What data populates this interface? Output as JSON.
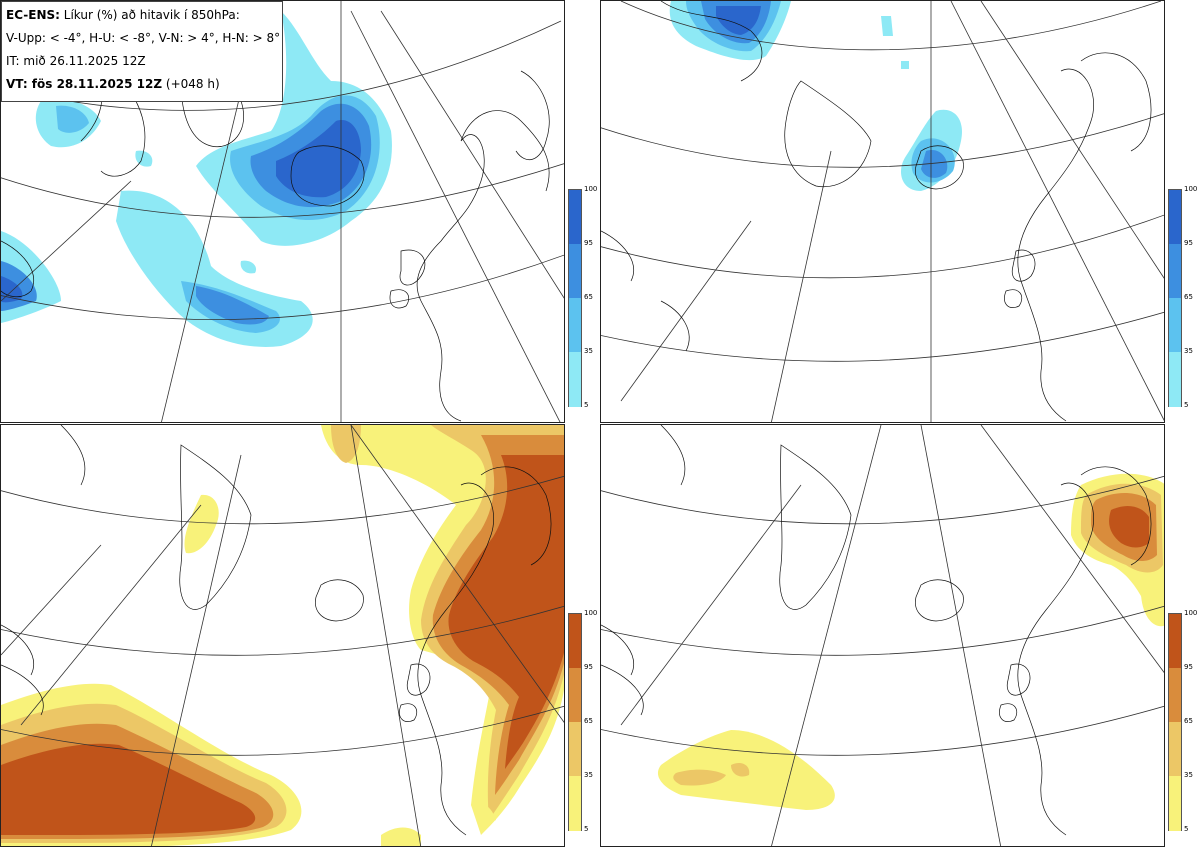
{
  "header": {
    "line1_bold": "EC-ENS:",
    "line1_rest": " Líkur (%) að hitavik í 850hPa:",
    "line2": "V-Upp: < -4°, H-U: < -8°, V-N: > 4°, H-N: > 8°",
    "line3": "IT: mið 26.11.2025 12Z",
    "line4_bold": "VT: fös 28.11.2025 12Z",
    "line4_rest": " (+048 h)"
  },
  "colorbar": {
    "ticks": [
      "100",
      "95",
      "65",
      "35",
      "5"
    ],
    "cold_colors": [
      "#2a66cc",
      "#3d8fe0",
      "#5cc2ef",
      "#8ee9f5"
    ],
    "warm_colors": [
      "#c0541a",
      "#d98c3c",
      "#ecc766",
      "#f8f27a"
    ]
  },
  "panels": [
    {
      "id": "top-left",
      "scheme": "cold"
    },
    {
      "id": "top-right",
      "scheme": "cold"
    },
    {
      "id": "bottom-left",
      "scheme": "warm"
    },
    {
      "id": "bottom-right",
      "scheme": "warm"
    }
  ]
}
